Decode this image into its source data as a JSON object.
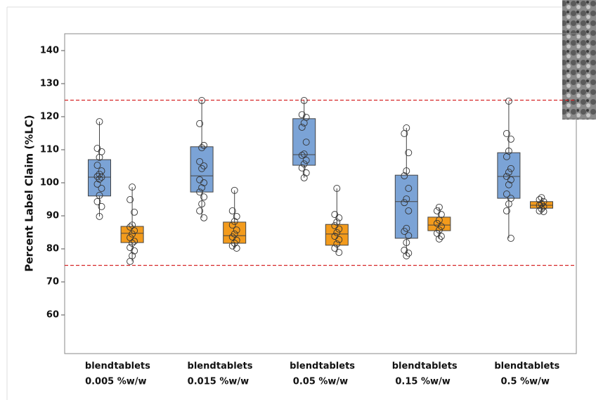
{
  "chart_data": {
    "type": "box",
    "ylabel": "Percent Label Claim (%LC)",
    "ylim": [
      48.3,
      145.1
    ],
    "yticks": [
      60,
      70,
      80,
      90,
      100,
      110,
      120,
      130,
      140
    ],
    "grid": false,
    "reference_lines": [
      125,
      75
    ],
    "reference_color": "#d62728",
    "groups": [
      "0.005 %w/w",
      "0.015 %w/w",
      "0.05 %w/w",
      "0.15 %w/w",
      "0.5 %w/w"
    ],
    "boxes": [
      {
        "name": "blend",
        "color": "#7ba3d6",
        "whisker_low": 89.8,
        "q1": 96.0,
        "median": 101.7,
        "q3": 107.0,
        "whisker_high": 118.5,
        "points": [
          118.5,
          110.4,
          109.4,
          107.7,
          105.3,
          103.6,
          102.6,
          101.9,
          101.7,
          101.1,
          99.6,
          98.3,
          96.2,
          94.3,
          92.8,
          89.8
        ]
      },
      {
        "name": "tablets",
        "color": "#f39b1c",
        "whisker_low": 76.2,
        "q1": 81.9,
        "median": 84.7,
        "q3": 86.8,
        "whisker_high": 98.7,
        "points": [
          98.7,
          94.9,
          91.1,
          87.2,
          86.6,
          85.5,
          84.5,
          83.4,
          82.3,
          81.7,
          80.4,
          79.4,
          77.9,
          76.2
        ]
      },
      {
        "name": "blend",
        "color": "#7ba3d6",
        "whisker_low": 89.4,
        "q1": 97.2,
        "median": 102.1,
        "q3": 110.9,
        "whisker_high": 124.9,
        "points": [
          124.9,
          117.9,
          111.3,
          110.6,
          106.4,
          105.1,
          104.3,
          100.9,
          100,
          98.5,
          97.2,
          95.7,
          93.6,
          91.5,
          89.4
        ]
      },
      {
        "name": "tablets",
        "color": "#f39b1c",
        "whisker_low": 80.2,
        "q1": 81.7,
        "median": 84.0,
        "q3": 88.1,
        "whisker_high": 97.7,
        "points": [
          97.7,
          91.5,
          89.8,
          88.3,
          87.2,
          85.7,
          84.5,
          83.6,
          82.6,
          81.7,
          80.9,
          80.2
        ]
      },
      {
        "name": "blend",
        "color": "#7ba3d6",
        "whisker_low": 101.5,
        "q1": 105.3,
        "median": 108.5,
        "q3": 119.4,
        "whisker_high": 124.9,
        "points": [
          124.9,
          120.6,
          119.8,
          118.1,
          116.8,
          112.3,
          108.7,
          108.3,
          106.8,
          105.7,
          104.5,
          103.0,
          101.5
        ]
      },
      {
        "name": "tablets",
        "color": "#f39b1c",
        "whisker_low": 78.9,
        "q1": 81.1,
        "median": 84.5,
        "q3": 87.4,
        "whisker_high": 98.3,
        "points": [
          98.3,
          90.4,
          89.4,
          88.1,
          87.0,
          86.0,
          84.9,
          83.8,
          82.8,
          81.5,
          80.2,
          78.9
        ]
      },
      {
        "name": "blend",
        "color": "#7ba3d6",
        "whisker_low": 77.9,
        "q1": 83.2,
        "median": 94.3,
        "q3": 102.3,
        "whisker_high": 116.6,
        "points": [
          116.6,
          114.9,
          109.1,
          103.6,
          102.1,
          98.3,
          95.1,
          94.0,
          91.5,
          86.2,
          85.3,
          84.0,
          81.9,
          79.6,
          78.7,
          77.9
        ]
      },
      {
        "name": "tablets",
        "color": "#f39b1c",
        "whisker_low": 83.0,
        "q1": 85.5,
        "median": 87.2,
        "q3": 89.6,
        "whisker_high": 92.6,
        "points": [
          92.6,
          91.5,
          90.4,
          88.7,
          87.7,
          86.8,
          85.7,
          84.7,
          83.8,
          83.0
        ]
      },
      {
        "name": "blend",
        "color": "#7ba3d6",
        "whisker_low": 83.2,
        "q1": 95.3,
        "median": 101.9,
        "q3": 109.1,
        "whisker_high": 124.7,
        "points": [
          124.7,
          114.9,
          113.2,
          109.6,
          107.9,
          104.3,
          103.2,
          101.9,
          100.9,
          99.4,
          96.6,
          95.3,
          93.6,
          91.5,
          83.2
        ]
      },
      {
        "name": "tablets",
        "color": "#f39b1c",
        "whisker_low": 91.3,
        "q1": 92.3,
        "median": 93.2,
        "q3": 94.3,
        "whisker_high": 95.5,
        "points": [
          95.5,
          94.9,
          94.3,
          93.6,
          93.2,
          92.8,
          92.1,
          91.5,
          91.3
        ]
      }
    ]
  }
}
